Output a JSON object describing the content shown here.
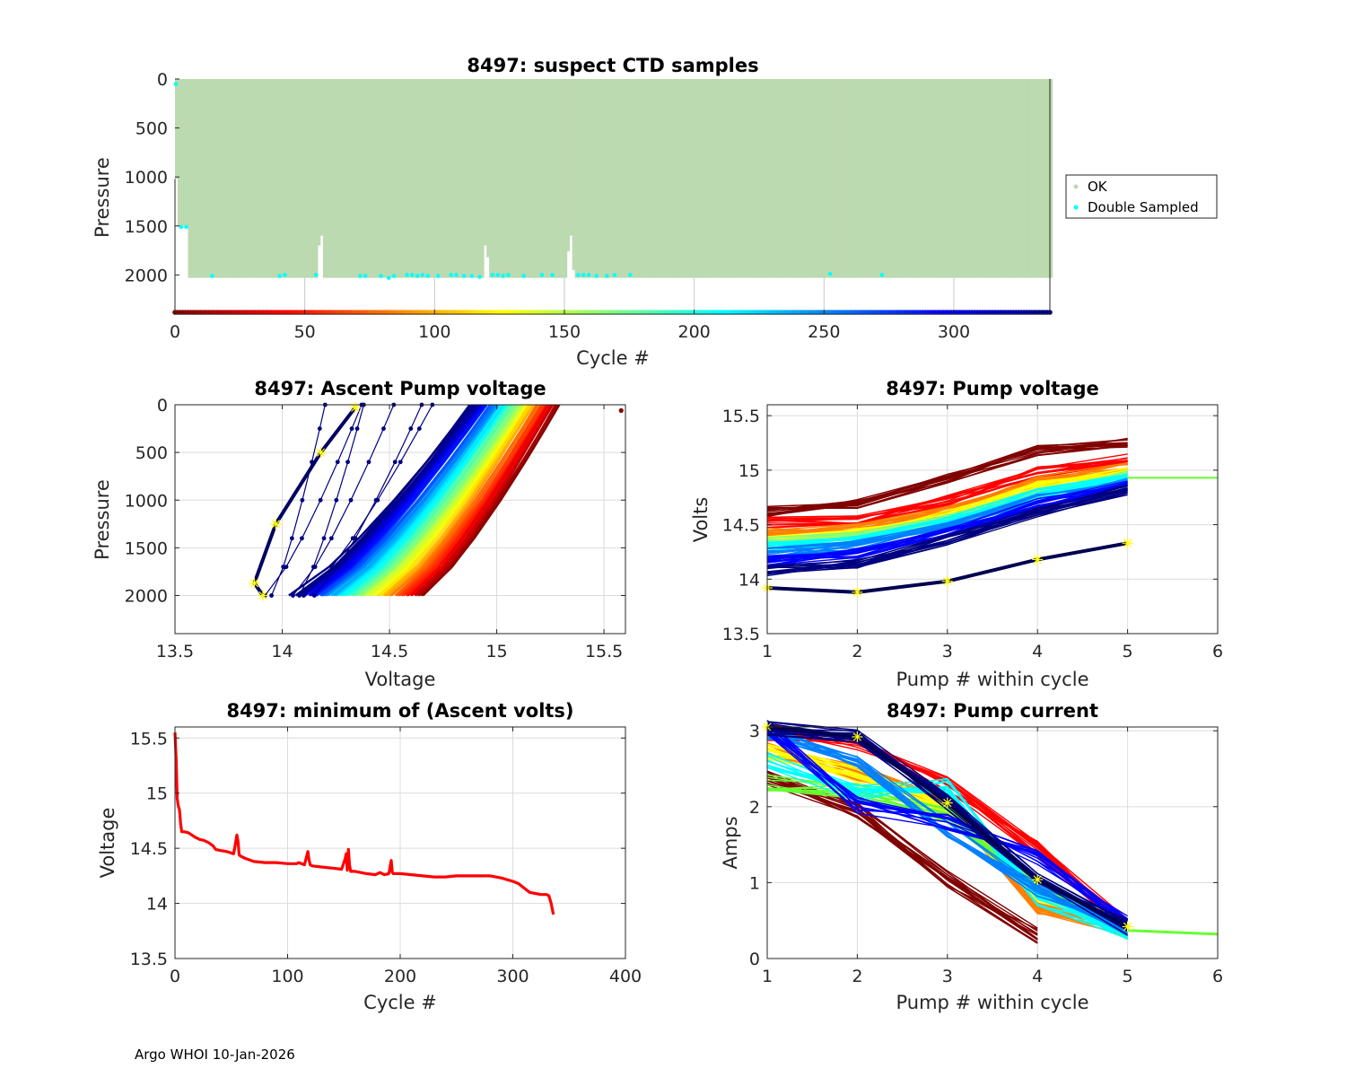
{
  "footer": "Argo WHOI 10-Jan-2026",
  "chart_data": [
    {
      "id": "suspect",
      "type": "scatter",
      "title": "8497: suspect CTD samples",
      "xlabel": "Cycle #",
      "ylabel": "Pressure",
      "xlim": [
        0,
        337
      ],
      "ylim": [
        2400,
        0
      ],
      "y_reversed": true,
      "xticks": [
        0,
        50,
        100,
        150,
        200,
        250,
        300
      ],
      "yticks": [
        0,
        500,
        1000,
        1500,
        2000
      ],
      "grid": true,
      "legend": {
        "placement": "outside-right",
        "entries": [
          {
            "label": "OK",
            "color": "#bcdab0"
          },
          {
            "label": "Double Sampled",
            "color": "#00ffff"
          }
        ]
      },
      "ok_profile_max_pressure": 2030,
      "shallow_profiles": [
        {
          "cycle": 0,
          "max_pressure": 1020
        },
        {
          "cycle": 1,
          "max_pressure": 1510
        },
        {
          "cycle": 2,
          "max_pressure": 1510
        },
        {
          "cycle": 3,
          "max_pressure": 1510
        },
        {
          "cycle": 4,
          "max_pressure": 1510
        },
        {
          "cycle": 55,
          "max_pressure": 1700
        },
        {
          "cycle": 56,
          "max_pressure": 1600
        },
        {
          "cycle": 119,
          "max_pressure": 1700
        },
        {
          "cycle": 120,
          "max_pressure": 1820
        },
        {
          "cycle": 151,
          "max_pressure": 1760
        },
        {
          "cycle": 152,
          "max_pressure": 1600
        },
        {
          "cycle": 153,
          "max_pressure": 1950
        }
      ],
      "double_sampled": [
        {
          "cycle": 0,
          "pressure": 50
        },
        {
          "cycle": 2,
          "pressure": 1510
        },
        {
          "cycle": 4,
          "pressure": 1510
        },
        {
          "cycle": 14,
          "pressure": 2010
        },
        {
          "cycle": 40,
          "pressure": 2010
        },
        {
          "cycle": 42,
          "pressure": 2000
        },
        {
          "cycle": 54,
          "pressure": 2000
        },
        {
          "cycle": 71,
          "pressure": 2010
        },
        {
          "cycle": 73,
          "pressure": 2010
        },
        {
          "cycle": 79,
          "pressure": 2010
        },
        {
          "cycle": 82,
          "pressure": 2030
        },
        {
          "cycle": 84,
          "pressure": 2010
        },
        {
          "cycle": 89,
          "pressure": 2000
        },
        {
          "cycle": 91,
          "pressure": 2000
        },
        {
          "cycle": 93,
          "pressure": 2010
        },
        {
          "cycle": 95,
          "pressure": 2000
        },
        {
          "cycle": 97,
          "pressure": 2010
        },
        {
          "cycle": 101,
          "pressure": 2010
        },
        {
          "cycle": 106,
          "pressure": 2000
        },
        {
          "cycle": 108,
          "pressure": 2000
        },
        {
          "cycle": 111,
          "pressure": 2010
        },
        {
          "cycle": 114,
          "pressure": 2010
        },
        {
          "cycle": 117,
          "pressure": 2020
        },
        {
          "cycle": 122,
          "pressure": 2000
        },
        {
          "cycle": 124,
          "pressure": 2000
        },
        {
          "cycle": 126,
          "pressure": 2010
        },
        {
          "cycle": 128,
          "pressure": 2000
        },
        {
          "cycle": 134,
          "pressure": 2010
        },
        {
          "cycle": 141,
          "pressure": 2000
        },
        {
          "cycle": 145,
          "pressure": 2000
        },
        {
          "cycle": 155,
          "pressure": 2000
        },
        {
          "cycle": 157,
          "pressure": 2000
        },
        {
          "cycle": 159,
          "pressure": 2000
        },
        {
          "cycle": 162,
          "pressure": 2010
        },
        {
          "cycle": 166,
          "pressure": 2010
        },
        {
          "cycle": 169,
          "pressure": 2000
        },
        {
          "cycle": 175,
          "pressure": 2000
        },
        {
          "cycle": 252,
          "pressure": 1990
        },
        {
          "cycle": 272,
          "pressure": 2000
        }
      ],
      "colorbar_cycles": [
        0,
        337
      ],
      "colormap": "jet-reversed (dark red = early cycles, dark blue = late cycles)"
    },
    {
      "id": "ascent",
      "type": "line",
      "title": "8497: Ascent Pump voltage",
      "xlabel": "Voltage",
      "ylabel": "Pressure",
      "xlim": [
        13.5,
        15.6
      ],
      "ylim": [
        2400,
        0
      ],
      "y_reversed": true,
      "xticks": [
        13.5,
        14,
        14.5,
        15,
        15.5
      ],
      "yticks": [
        0,
        500,
        1000,
        1500,
        2000
      ],
      "grid": true,
      "description": "One line per cycle; voltage at each ascent pump event vs pressure, colored by cycle number",
      "envelope": {
        "early_cycles": {
          "v_at_2000": 14.65,
          "v_at_0": 15.28
        },
        "late_cycles": {
          "v_at_2000": 14.05,
          "v_at_0": 14.88
        }
      },
      "latest_cycle_markers": [
        {
          "voltage": 13.91,
          "pressure": 2000
        },
        {
          "voltage": 13.87,
          "pressure": 1870
        },
        {
          "voltage": 13.97,
          "pressure": 1250
        },
        {
          "voltage": 14.18,
          "pressure": 500
        },
        {
          "voltage": 14.34,
          "pressure": 30
        }
      ],
      "outlier": {
        "voltage": 15.58,
        "pressure": 60
      }
    },
    {
      "id": "pumpv",
      "type": "line",
      "title": "8497: Pump voltage",
      "xlabel": "Pump # within cycle",
      "ylabel": "Volts",
      "xlim": [
        1,
        6
      ],
      "ylim": [
        13.5,
        15.6
      ],
      "xticks": [
        1,
        2,
        3,
        4,
        5,
        6
      ],
      "yticks": [
        13.5,
        14,
        14.5,
        15,
        15.5
      ],
      "grid": true,
      "bands": [
        {
          "color": "#800000",
          "values": [
            14.62,
            14.68,
            14.92,
            15.18,
            15.25
          ]
        },
        {
          "color": "#ff0000",
          "values": [
            14.52,
            14.55,
            14.72,
            14.98,
            15.1
          ]
        },
        {
          "color": "#ff8000",
          "values": [
            14.42,
            14.47,
            14.62,
            14.9,
            15.02
          ]
        },
        {
          "color": "#ffff00",
          "values": [
            14.36,
            14.42,
            14.58,
            14.85,
            14.98
          ]
        },
        {
          "color": "#80ff80",
          "values": [
            14.33,
            14.39,
            14.55,
            14.8,
            14.95
          ]
        },
        {
          "color": "#00ffff",
          "values": [
            14.29,
            14.35,
            14.52,
            14.78,
            14.92
          ]
        },
        {
          "color": "#0080ff",
          "values": [
            14.24,
            14.31,
            14.48,
            14.74,
            14.89
          ]
        },
        {
          "color": "#0000ff",
          "values": [
            14.17,
            14.24,
            14.43,
            14.7,
            14.86
          ]
        },
        {
          "color": "#000080",
          "values": [
            14.08,
            14.14,
            14.36,
            14.62,
            14.82
          ]
        }
      ],
      "latest_cycle": {
        "values": [
          13.92,
          13.88,
          13.98,
          14.18,
          14.33
        ]
      },
      "pump6_line": {
        "color": "#66ff33",
        "value": 14.93
      }
    },
    {
      "id": "minv",
      "type": "line",
      "title": "8497: minimum of (Ascent volts)",
      "xlabel": "Cycle #",
      "ylabel": "Voltage",
      "xlim": [
        0,
        400
      ],
      "ylim": [
        13.5,
        15.6
      ],
      "xticks": [
        0,
        100,
        200,
        300,
        400
      ],
      "yticks": [
        13.5,
        14,
        14.5,
        15,
        15.5
      ],
      "grid": true,
      "color": "#ff0000",
      "x": [
        0,
        1,
        2,
        3,
        4,
        5,
        6,
        8,
        12,
        18,
        22,
        26,
        30,
        34,
        36,
        40,
        46,
        52,
        53,
        55,
        56,
        57,
        58,
        62,
        70,
        80,
        90,
        100,
        108,
        110,
        115,
        118,
        119,
        120,
        122,
        130,
        140,
        148,
        151,
        152,
        153,
        154,
        155,
        156,
        160,
        170,
        178,
        182,
        186,
        190,
        192,
        193,
        194,
        200,
        210,
        220,
        230,
        240,
        250,
        260,
        270,
        280,
        290,
        300,
        305,
        310,
        315,
        320,
        325,
        330,
        332,
        334,
        336
      ],
      "y": [
        15.55,
        15.3,
        14.95,
        14.88,
        14.85,
        14.72,
        14.65,
        14.65,
        14.64,
        14.6,
        14.58,
        14.57,
        14.55,
        14.52,
        14.49,
        14.48,
        14.47,
        14.45,
        14.5,
        14.62,
        14.56,
        14.44,
        14.43,
        14.41,
        14.38,
        14.37,
        14.37,
        14.36,
        14.36,
        14.37,
        14.35,
        14.47,
        14.4,
        14.35,
        14.34,
        14.33,
        14.32,
        14.31,
        14.4,
        14.45,
        14.3,
        14.49,
        14.35,
        14.29,
        14.29,
        14.27,
        14.26,
        14.28,
        14.26,
        14.27,
        14.39,
        14.28,
        14.27,
        14.27,
        14.26,
        14.25,
        14.24,
        14.24,
        14.25,
        14.25,
        14.25,
        14.25,
        14.23,
        14.2,
        14.18,
        14.14,
        14.1,
        14.09,
        14.08,
        14.08,
        14.07,
        14.0,
        13.9
      ]
    },
    {
      "id": "pumpa",
      "type": "line",
      "title": "8497: Pump current",
      "xlabel": "Pump # within cycle",
      "ylabel": "Amps",
      "xlim": [
        1,
        6
      ],
      "ylim": [
        0,
        3.05
      ],
      "xticks": [
        1,
        2,
        3,
        4,
        5,
        6
      ],
      "yticks": [
        0,
        1,
        2,
        3
      ],
      "grid": true,
      "bands": [
        {
          "color": "#800000",
          "values": [
            2.36,
            1.95,
            1.05,
            0.3,
            null
          ]
        },
        {
          "color": "#ff0000",
          "values": [
            2.98,
            2.85,
            2.3,
            1.45,
            0.42
          ]
        },
        {
          "color": "#ff8000",
          "values": [
            2.75,
            2.45,
            2.05,
            0.7,
            0.38
          ]
        },
        {
          "color": "#ffff00",
          "values": [
            2.72,
            2.42,
            1.95,
            0.85,
            0.4
          ]
        },
        {
          "color": "#66ff33",
          "values": [
            2.32,
            2.2,
            1.9,
            0.95,
            0.37
          ]
        },
        {
          "color": "#00ffff",
          "values": [
            2.62,
            2.18,
            2.28,
            0.8,
            0.36
          ]
        },
        {
          "color": "#0080ff",
          "values": [
            3.0,
            2.55,
            1.7,
            0.9,
            0.38
          ]
        },
        {
          "color": "#0000ff",
          "values": [
            3.05,
            2.02,
            1.8,
            1.35,
            0.45
          ]
        },
        {
          "color": "#000080",
          "values": [
            3.05,
            2.92,
            2.05,
            1.05,
            0.42
          ]
        }
      ],
      "latest_cycle": {
        "values": [
          3.05,
          2.92,
          2.05,
          1.04,
          0.42
        ]
      },
      "pump6_line": {
        "color": "#66ff33",
        "values": [
          0.37,
          0.32
        ]
      }
    }
  ]
}
